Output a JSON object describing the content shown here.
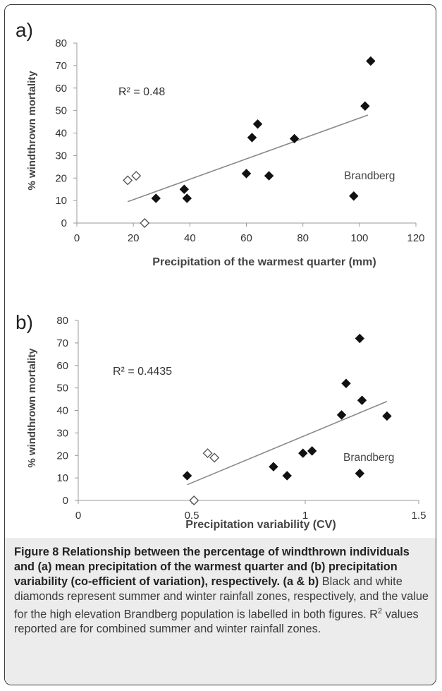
{
  "chart_data": [
    {
      "type": "scatter",
      "panel_label": "a)",
      "xlabel": "Precipitation of the warmest quarter (mm)",
      "ylabel": "% windthrown mortality",
      "xlim": [
        0,
        120
      ],
      "ylim": [
        0,
        80
      ],
      "xticks": [
        "0",
        "20",
        "40",
        "60",
        "80",
        "100",
        "120"
      ],
      "yticks": [
        "0",
        "10",
        "20",
        "30",
        "40",
        "50",
        "60",
        "70",
        "80"
      ],
      "annotation_r2": "R² = 0.48",
      "annotation_label": "Brandberg",
      "series": [
        {
          "name": "summer",
          "marker": "filled-diamond",
          "points": [
            [
              28,
              11
            ],
            [
              38,
              15
            ],
            [
              39,
              11
            ],
            [
              60,
              22
            ],
            [
              62,
              38
            ],
            [
              64,
              44
            ],
            [
              68,
              21
            ],
            [
              77,
              37.5
            ],
            [
              98,
              12
            ],
            [
              102,
              52
            ],
            [
              104,
              72
            ]
          ]
        },
        {
          "name": "winter",
          "marker": "open-diamond",
          "points": [
            [
              18,
              19
            ],
            [
              21,
              21
            ],
            [
              24,
              0
            ]
          ]
        }
      ],
      "trendline": [
        [
          18,
          9.5
        ],
        [
          103,
          48
        ]
      ]
    },
    {
      "type": "scatter",
      "panel_label": "b)",
      "xlabel": "Precipitation variability (CV)",
      "ylabel": "% windthrown mortality",
      "xlim": [
        0,
        1.5
      ],
      "ylim": [
        0,
        80
      ],
      "xticks": [
        "0",
        "0.5",
        "1",
        "1.5"
      ],
      "yticks": [
        "0",
        "10",
        "20",
        "30",
        "40",
        "50",
        "60",
        "70",
        "80"
      ],
      "annotation_r2": "R² = 0.4435",
      "annotation_label": "Brandberg",
      "series": [
        {
          "name": "summer",
          "marker": "filled-diamond",
          "points": [
            [
              0.48,
              11
            ],
            [
              0.86,
              15
            ],
            [
              0.92,
              11
            ],
            [
              0.99,
              21
            ],
            [
              1.03,
              22
            ],
            [
              1.16,
              38
            ],
            [
              1.18,
              52
            ],
            [
              1.24,
              72
            ],
            [
              1.25,
              44.5
            ],
            [
              1.24,
              12
            ],
            [
              1.36,
              37.5
            ]
          ]
        },
        {
          "name": "winter",
          "marker": "open-diamond",
          "points": [
            [
              0.57,
              21
            ],
            [
              0.6,
              19
            ],
            [
              0.51,
              0
            ]
          ]
        }
      ],
      "trendline": [
        [
          0.48,
          7
        ],
        [
          1.36,
          44
        ]
      ]
    }
  ],
  "caption": {
    "title_bold": "Figure 8 Relationship between the percentage of windthrown individuals and (a) mean precipitation of the warmest quarter and (b) precipitation variability (co-efficient of variation), respectively.",
    "ref_bold": "(a & b)",
    "text_1": "Black and white diamonds represent summer and winter rainfall zones, respectively, and the value for the high elevation Brandberg population is labelled in both figures. R",
    "sup": "2",
    "text_2": " values reported are for combined summer and winter rainfall zones."
  }
}
